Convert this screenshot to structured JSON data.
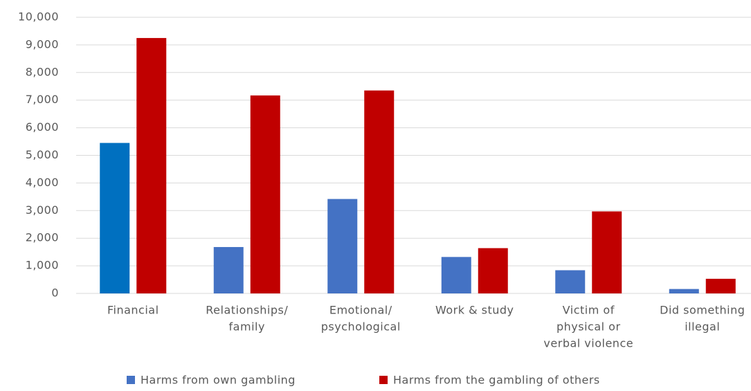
{
  "chart_data": {
    "type": "bar",
    "categories": [
      [
        "Financial"
      ],
      [
        "Relationships/",
        "family"
      ],
      [
        "Emotional/",
        "psychological"
      ],
      [
        "Work & study"
      ],
      [
        "Victim of",
        "physical or",
        "verbal violence"
      ],
      [
        "Did something",
        "illegal"
      ]
    ],
    "series": [
      {
        "name": "Harms from own gambling",
        "color": "#4472c4",
        "point_colors": [
          "#0070c0",
          "#4472c4",
          "#4472c4",
          "#4472c4",
          "#4472c4",
          "#4472c4"
        ],
        "values": [
          5450,
          1680,
          3420,
          1320,
          840,
          160
        ]
      },
      {
        "name": "Harms from the gambling of others",
        "color": "#c00000",
        "values": [
          9250,
          7170,
          7350,
          1640,
          2970,
          530
        ]
      }
    ],
    "ylim": [
      0,
      10000
    ],
    "yticks": [
      0,
      {
        "value": 1000,
        "label": "1,000"
      },
      {
        "value": 2000,
        "label": "2,000"
      },
      {
        "value": 3000,
        "label": "3,000"
      },
      {
        "value": 4000,
        "label": "4,000"
      },
      {
        "value": 5000,
        "label": "5,000"
      },
      {
        "value": 6000,
        "label": "6,000"
      },
      {
        "value": 7000,
        "label": "7,000"
      },
      {
        "value": 8000,
        "label": "8,000"
      },
      {
        "value": 9000,
        "label": "9,000"
      },
      {
        "value": 10000,
        "label": "10,000"
      }
    ],
    "grid": true,
    "legend": "bottom"
  }
}
